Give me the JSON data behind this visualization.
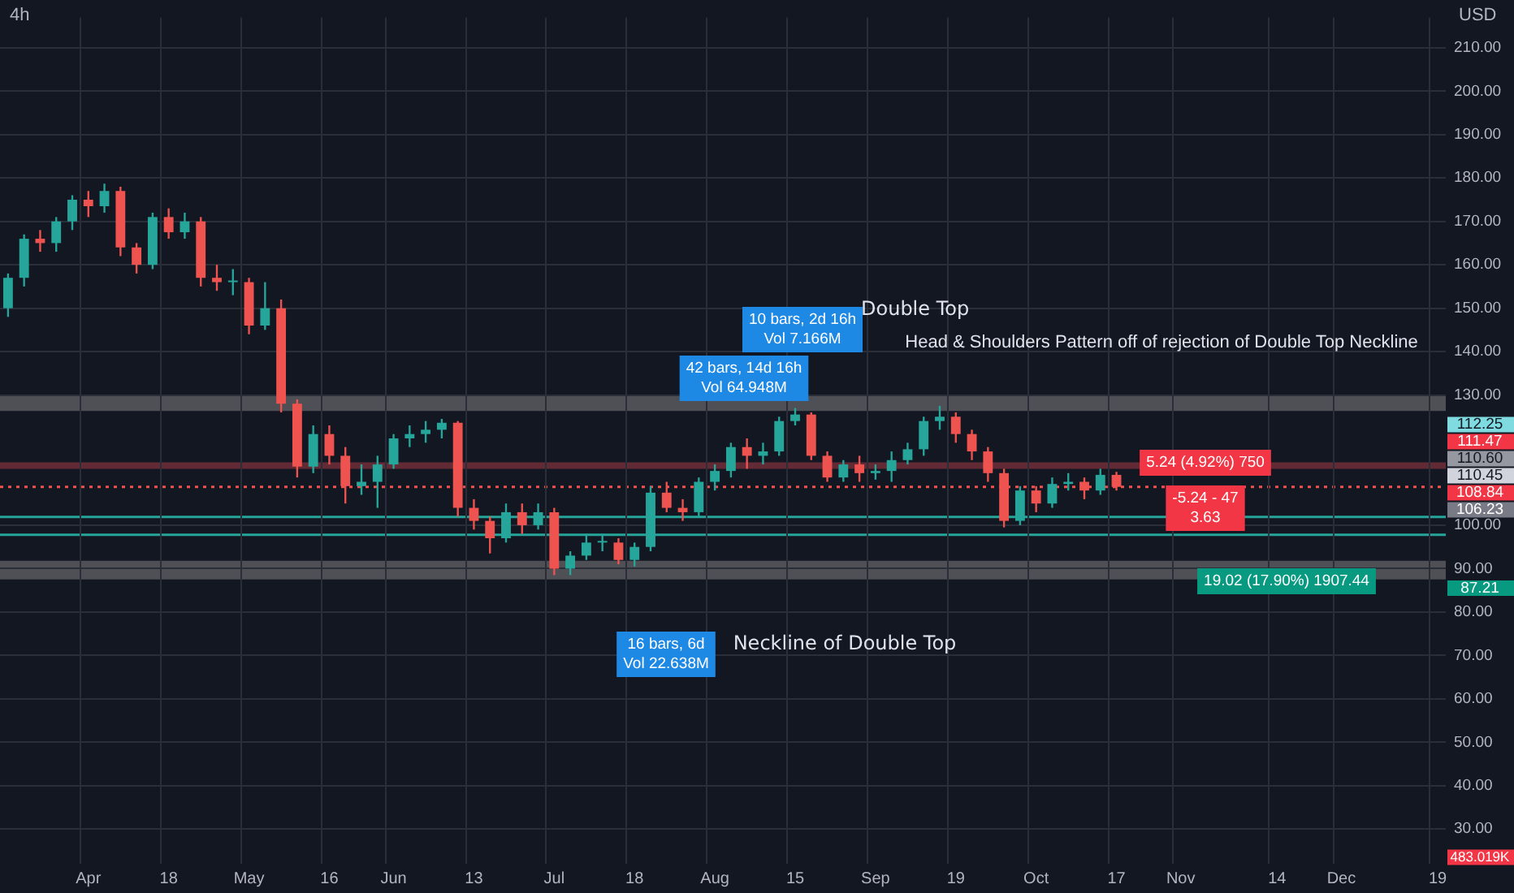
{
  "chart_data": {
    "type": "candlestick",
    "title": "4h",
    "ylabel": "USD",
    "categories": [
      null,
      null,
      null,
      null,
      null,
      "Apr",
      null,
      null,
      null,
      null,
      "18",
      null,
      null,
      null,
      null,
      "May",
      null,
      null,
      null,
      null,
      "16",
      null,
      null,
      null,
      "Jun",
      null,
      null,
      null,
      null,
      "13",
      null,
      null,
      null,
      null,
      "Jul",
      null,
      null,
      null,
      null,
      "18",
      null,
      null,
      null,
      null,
      "Aug",
      null,
      null,
      null,
      null,
      "15",
      null,
      null,
      null,
      null,
      "Sep",
      null,
      null,
      null,
      null,
      "19",
      null,
      null,
      null,
      null,
      "Oct",
      null,
      null,
      null,
      null,
      "17",
      null,
      null,
      null,
      "Nov",
      null,
      null,
      null,
      null,
      null,
      "14",
      null,
      null,
      null,
      "Dec",
      null,
      null,
      null,
      null,
      null,
      "19"
    ],
    "ohlc": [
      [
        150,
        158,
        148,
        157
      ],
      [
        157,
        167,
        155,
        166
      ],
      [
        166,
        168,
        163,
        165
      ],
      [
        165,
        171,
        163,
        170
      ],
      [
        170,
        176,
        168,
        175
      ],
      [
        175,
        177,
        171,
        173.5
      ],
      [
        173.5,
        178.7,
        172,
        177
      ],
      [
        177,
        178,
        162,
        164
      ],
      [
        164,
        165,
        158,
        160
      ],
      [
        160,
        172,
        159,
        171
      ],
      [
        171,
        173,
        166,
        167.5
      ],
      [
        167.5,
        172,
        166,
        170
      ],
      [
        170,
        171,
        155,
        157
      ],
      [
        157,
        160,
        154,
        156
      ],
      [
        156,
        159,
        153,
        156
      ],
      [
        156,
        157,
        144,
        146
      ],
      [
        146,
        156,
        145,
        150
      ],
      [
        150,
        152,
        126,
        128
      ],
      [
        128,
        129,
        111,
        113.5
      ],
      [
        113.5,
        123,
        112,
        121
      ],
      [
        121,
        123,
        114,
        116
      ],
      [
        116,
        118,
        105,
        109
      ],
      [
        109,
        114,
        107,
        110
      ],
      [
        110,
        116,
        104,
        114
      ],
      [
        114,
        121,
        113,
        120
      ],
      [
        120,
        123,
        118,
        121
      ],
      [
        121,
        124,
        119,
        122
      ],
      [
        122,
        124.5,
        120,
        123.6
      ],
      [
        123.6,
        124,
        102,
        104
      ],
      [
        104,
        106,
        99,
        101
      ],
      [
        101,
        102,
        93.5,
        97
      ],
      [
        97,
        105,
        96,
        103
      ],
      [
        103,
        105,
        98,
        100
      ],
      [
        100,
        105,
        99,
        103
      ],
      [
        103,
        104,
        88.5,
        90
      ],
      [
        90,
        94,
        88.5,
        93
      ],
      [
        93,
        98,
        92,
        96
      ],
      [
        96,
        98,
        94,
        96
      ],
      [
        96,
        97,
        91,
        92
      ],
      [
        92,
        96,
        90.5,
        95
      ],
      [
        95,
        109,
        94,
        107.5
      ],
      [
        107.5,
        110,
        103,
        104
      ],
      [
        104,
        106,
        101,
        103
      ],
      [
        103,
        111,
        102,
        110
      ],
      [
        110,
        114,
        108,
        112.5
      ],
      [
        112.5,
        119,
        111,
        118
      ],
      [
        118,
        120,
        113,
        116
      ],
      [
        116,
        119,
        114,
        117
      ],
      [
        117,
        125,
        116,
        124
      ],
      [
        124,
        127,
        123,
        125.5
      ],
      [
        125.5,
        126,
        115,
        116
      ],
      [
        116,
        117,
        110,
        111
      ],
      [
        111,
        115,
        110,
        114
      ],
      [
        114,
        116,
        110,
        112
      ],
      [
        112,
        114,
        110.5,
        112.5
      ],
      [
        112.5,
        117,
        110,
        115
      ],
      [
        115,
        119,
        114,
        117.5
      ],
      [
        117.5,
        125,
        116,
        124
      ],
      [
        124,
        127.5,
        122,
        125
      ],
      [
        125,
        126,
        119,
        121
      ],
      [
        121,
        122,
        115,
        117
      ],
      [
        117,
        118,
        110,
        112
      ],
      [
        112,
        113,
        99.5,
        101
      ],
      [
        101,
        109,
        100,
        108
      ],
      [
        108,
        109,
        103,
        105
      ],
      [
        105,
        111,
        104,
        109.5
      ],
      [
        109.5,
        112,
        108,
        110
      ],
      [
        110,
        111,
        106,
        108
      ],
      [
        108,
        113,
        107,
        111.6
      ],
      [
        111.6,
        112.3,
        108,
        108.84
      ],
      null,
      null,
      null,
      null,
      null,
      null,
      null,
      null,
      null,
      null,
      null,
      null,
      null,
      null,
      null,
      null,
      null,
      null,
      null,
      null
    ],
    "ylim": [
      22,
      217
    ],
    "yticks": [
      {
        "value": 30,
        "label": "30.00"
      },
      {
        "value": 40,
        "label": "40.00"
      },
      {
        "value": 50,
        "label": "50.00"
      },
      {
        "value": 60,
        "label": "60.00"
      },
      {
        "value": 70,
        "label": "70.00"
      },
      {
        "value": 80,
        "label": "80.00"
      },
      {
        "value": 90,
        "label": "90.00"
      },
      {
        "value": 100,
        "label": "100.00"
      },
      {
        "value": 130,
        "label": "130.00"
      },
      {
        "value": 140,
        "label": "140.00"
      },
      {
        "value": 150,
        "label": "150.00"
      },
      {
        "value": 160,
        "label": "160.00"
      },
      {
        "value": 170,
        "label": "170.00"
      },
      {
        "value": 180,
        "label": "180.00"
      },
      {
        "value": 190,
        "label": "190.00"
      },
      {
        "value": 200,
        "label": "200.00"
      },
      {
        "value": 210,
        "label": "210.00"
      }
    ],
    "grid": true,
    "legend": false,
    "bands": [
      {
        "axis": "y",
        "from": 126.3,
        "to": 130,
        "color": "#808080"
      },
      {
        "axis": "y",
        "from": 87.5,
        "to": 91.8,
        "color": "#808080"
      },
      {
        "axis": "y",
        "from": 113,
        "to": 114.5,
        "color": "#a33a44"
      }
    ],
    "ref_lines": [
      {
        "axis": "y",
        "value": 101.9,
        "color": "#26a69a"
      },
      {
        "axis": "y",
        "value": 97.8,
        "color": "#26a69a"
      },
      {
        "axis": "y",
        "value": 108.84,
        "color": "#ef5350",
        "line_style": "dotted"
      }
    ],
    "annotations": [
      "Double Top",
      "Head & Shoulders Pattern off of rejection of Double Top Neckline",
      "Neckline of Double Top",
      "10 bars, 2d 16h\nVol 7.166M",
      "42 bars, 14d 16h\nVol 64.948M",
      "16 bars, 6d\nVol 22.638M",
      "5.24 (4.92%) 750",
      "-5.24 - 47\n3.63",
      "19.02 (17.90%) 1907.44",
      "112.25",
      "111.47",
      "110.60",
      "110.45",
      "108.84",
      "106.23",
      "87.21",
      "483.019K"
    ]
  }
}
